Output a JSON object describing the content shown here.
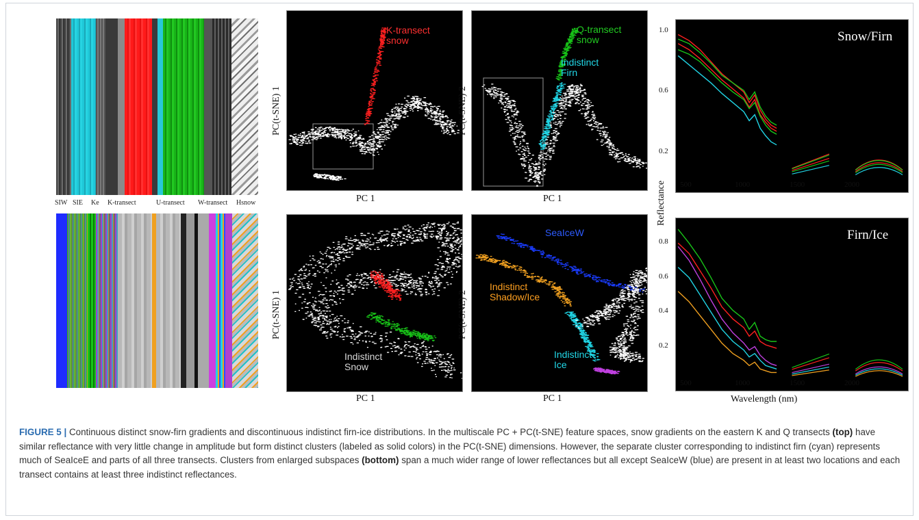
{
  "figure": {
    "top_strip_labels": [
      "SIW",
      "SIE",
      "Ke",
      "K-transect",
      "U-transect",
      "W-transect",
      "Hsnow"
    ],
    "scatter_panels": [
      {
        "xlabel": "PC 1",
        "ylabel": "PC(t-SNE) 1",
        "labels": [
          {
            "text": "K-transect\nsnow",
            "color": "#ff3030"
          }
        ]
      },
      {
        "xlabel": "PC 1",
        "ylabel": "PC(t-SNE) 2",
        "labels": [
          {
            "text": "Q-transect\nsnow",
            "color": "#22cc22"
          },
          {
            "text": "Indistinct\nFirn",
            "color": "#22d8e8"
          }
        ]
      },
      {
        "xlabel": "PC 1",
        "ylabel": "PC(t-SNE) 1",
        "labels": [
          {
            "text": "Indistinct\nSnow",
            "color": "#d8d8d8"
          }
        ]
      },
      {
        "xlabel": "PC 1",
        "ylabel": "PC(t-SNE) 2",
        "labels": [
          {
            "text": "SeaIceW",
            "color": "#2d5bff"
          },
          {
            "text": "Indistinct\nShadow/Ice",
            "color": "#ffa020"
          },
          {
            "text": "Indistinct\nIce",
            "color": "#22d8e8"
          }
        ]
      }
    ],
    "colors": {
      "red": "#ff2020",
      "green": "#18c418",
      "cyan": "#20d4e4",
      "blue": "#1a3cff",
      "orange": "#f0a020",
      "magenta": "#c040e0",
      "white": "#ffffff"
    }
  },
  "chart_data": [
    {
      "type": "line",
      "title": "Snow/Firn",
      "ylabel": "Reflectance",
      "xlabel": "",
      "xlim": [
        380,
        2500
      ],
      "ylim": [
        0.0,
        1.05
      ],
      "xticks": [
        500,
        1000,
        1500,
        2000
      ],
      "yticks": [
        0.2,
        0.6,
        1.0
      ],
      "series": [
        {
          "color": "#ff2020",
          "x": [
            400,
            500,
            600,
            700,
            800,
            900,
            1000,
            1050,
            1100,
            1150,
            1200,
            1250,
            1300
          ],
          "y": [
            0.98,
            0.94,
            0.88,
            0.8,
            0.72,
            0.66,
            0.6,
            0.53,
            0.58,
            0.48,
            0.42,
            0.38,
            0.36
          ]
        },
        {
          "color": "#18c418",
          "x": [
            400,
            500,
            600,
            700,
            800,
            900,
            1000,
            1050,
            1100,
            1150,
            1200,
            1250,
            1300
          ],
          "y": [
            0.95,
            0.92,
            0.86,
            0.79,
            0.71,
            0.66,
            0.61,
            0.55,
            0.6,
            0.5,
            0.44,
            0.4,
            0.38
          ]
        },
        {
          "color": "#ff2020",
          "x": [
            400,
            500,
            600,
            700,
            800,
            900,
            1000,
            1050,
            1100,
            1150,
            1200,
            1250,
            1300
          ],
          "y": [
            0.92,
            0.88,
            0.82,
            0.75,
            0.68,
            0.62,
            0.56,
            0.5,
            0.55,
            0.45,
            0.4,
            0.36,
            0.34
          ]
        },
        {
          "color": "#18c418",
          "x": [
            400,
            500,
            600,
            700,
            800,
            900,
            1000,
            1050,
            1100,
            1150,
            1200,
            1250,
            1300
          ],
          "y": [
            0.88,
            0.85,
            0.8,
            0.73,
            0.66,
            0.6,
            0.55,
            0.49,
            0.53,
            0.44,
            0.38,
            0.34,
            0.32
          ]
        },
        {
          "color": "#20d4e4",
          "x": [
            400,
            500,
            600,
            700,
            800,
            900,
            1000,
            1050,
            1100,
            1150,
            1200,
            1250,
            1300
          ],
          "y": [
            0.84,
            0.78,
            0.72,
            0.66,
            0.59,
            0.53,
            0.47,
            0.41,
            0.45,
            0.36,
            0.31,
            0.27,
            0.25
          ]
        }
      ]
    },
    {
      "type": "line",
      "title": "Firn/Ice",
      "ylabel": "Reflectance",
      "xlabel": "Wavelength (nm)",
      "xlim": [
        380,
        2500
      ],
      "ylim": [
        0.0,
        0.92
      ],
      "xticks": [
        500,
        1000,
        1500,
        2000
      ],
      "yticks": [
        0.2,
        0.4,
        0.6,
        0.8
      ],
      "series": [
        {
          "color": "#18c418",
          "x": [
            400,
            500,
            600,
            700,
            800,
            900,
            1000,
            1050,
            1100,
            1150,
            1200,
            1250,
            1300
          ],
          "y": [
            0.88,
            0.8,
            0.71,
            0.6,
            0.48,
            0.41,
            0.36,
            0.3,
            0.34,
            0.26,
            0.24,
            0.23,
            0.23
          ]
        },
        {
          "color": "#ff2020",
          "x": [
            400,
            500,
            600,
            700,
            800,
            900,
            1000,
            1050,
            1100,
            1150,
            1200,
            1250,
            1300
          ],
          "y": [
            0.8,
            0.74,
            0.64,
            0.54,
            0.43,
            0.36,
            0.31,
            0.26,
            0.29,
            0.23,
            0.21,
            0.2,
            0.19
          ]
        },
        {
          "color": "#c040e0",
          "x": [
            400,
            500,
            600,
            700,
            800,
            900,
            1000,
            1050,
            1100,
            1150,
            1200,
            1250,
            1300
          ],
          "y": [
            0.78,
            0.7,
            0.59,
            0.47,
            0.36,
            0.28,
            0.22,
            0.18,
            0.2,
            0.15,
            0.12,
            0.1,
            0.09
          ]
        },
        {
          "color": "#20d4e4",
          "x": [
            400,
            500,
            600,
            700,
            800,
            900,
            1000,
            1050,
            1100,
            1150,
            1200,
            1250,
            1300
          ],
          "y": [
            0.66,
            0.6,
            0.5,
            0.4,
            0.3,
            0.23,
            0.18,
            0.14,
            0.16,
            0.12,
            0.09,
            0.08,
            0.07
          ]
        },
        {
          "color": "#f0a020",
          "x": [
            400,
            500,
            600,
            700,
            800,
            900,
            1000,
            1050,
            1100,
            1150,
            1200,
            1250,
            1300
          ],
          "y": [
            0.52,
            0.46,
            0.38,
            0.3,
            0.22,
            0.16,
            0.12,
            0.09,
            0.11,
            0.07,
            0.06,
            0.05,
            0.05
          ]
        }
      ]
    }
  ],
  "caption": {
    "fig_label": "FIGURE 5 |",
    "p1": " Continuous distinct snow-firn gradients and discontinuous indistinct firn-ice distributions. In the multiscale PC + PC(t-SNE) feature spaces, snow gradients on the eastern K and Q transects ",
    "b1": "(top)",
    "p2": " have similar reflectance with very little change in amplitude but form distinct clusters (labeled as solid colors) in the PC(t-SNE) dimensions. However, the separate cluster corresponding to indistinct firn (cyan) represents much of SeaIceE and parts of all three transects. Clusters from enlarged subspaces ",
    "b2": "(bottom)",
    "p3": " span a much wider range of lower reflectances but all except SeaIceW (blue) are present in at least two locations and each transect contains at least three indistinct reflectances."
  }
}
